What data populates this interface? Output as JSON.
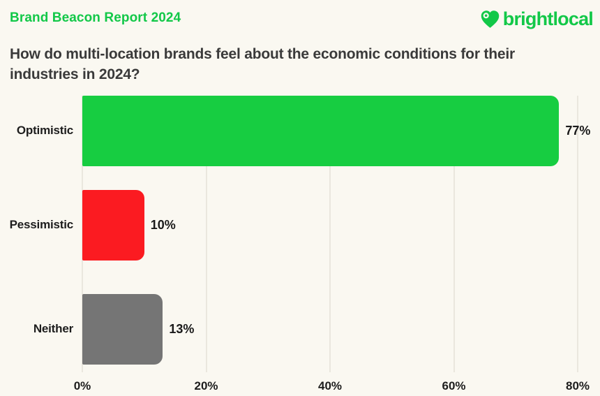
{
  "page": {
    "report_label": "Brand Beacon Report 2024",
    "title_line1": "How do multi-location brands feel about the economic conditions for their",
    "title_line2": "industries in 2024?"
  },
  "logo": {
    "name": "brightlocal",
    "icon": "heart-pin-icon"
  },
  "colors": {
    "background": "#FAF8F1",
    "brand_green": "#12C848",
    "bar_green": "#17CD41",
    "bar_red": "#FB1B21",
    "bar_gray": "#757575",
    "gridline": "#EAE7DE",
    "title_text": "#3A3A3A",
    "label_text": "#1D1D1D"
  },
  "chart_data": {
    "type": "bar",
    "orientation": "horizontal",
    "title": "How do multi-location brands feel about the economic conditions for their industries in 2024?",
    "categories": [
      "Optimistic",
      "Pessimistic",
      "Neither"
    ],
    "values": [
      77,
      10,
      13
    ],
    "value_labels": [
      "77%",
      "10%",
      "13%"
    ],
    "bar_colors": [
      "#17CD41",
      "#FB1B21",
      "#757575"
    ],
    "xlabel": "",
    "ylabel": "",
    "xlim": [
      0,
      80
    ],
    "x_ticks": [
      0,
      20,
      40,
      60,
      80
    ],
    "x_tick_labels": [
      "0%",
      "20%",
      "40%",
      "60%",
      "80%"
    ],
    "grid": "vertical-only",
    "legend": "none"
  }
}
